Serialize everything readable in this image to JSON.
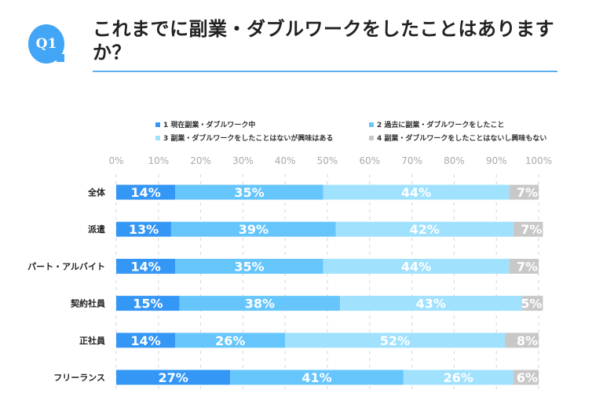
{
  "header": {
    "badge": "Q1",
    "title": "これまでに副業・ダブルワークをしたことはありますか？"
  },
  "colors": {
    "accent": "#42a5f5",
    "rule": "#5ab0f0"
  },
  "chart_data": {
    "type": "bar",
    "orientation": "horizontal",
    "stacked": true,
    "normalized": true,
    "title": "",
    "xlabel": "",
    "ylabel": "",
    "xlim": [
      0,
      100
    ],
    "x_ticks": [
      "0%",
      "10%",
      "20%",
      "30%",
      "40%",
      "50%",
      "60%",
      "70%",
      "80%",
      "90%",
      "100%"
    ],
    "grid": true,
    "legend_position": "top",
    "categories": [
      "全体",
      "派遣",
      "パート・アルバイト",
      "契約社員",
      "正社員",
      "フリーランス"
    ],
    "series": [
      {
        "name": "1 現在副業・ダブルワーク中",
        "color": "#3597f5",
        "values": [
          14,
          13,
          14,
          15,
          14,
          27
        ]
      },
      {
        "name": "2 過去に副業・ダブルワークをしたこと",
        "color": "#66c6fc",
        "values": [
          35,
          39,
          35,
          38,
          26,
          41
        ]
      },
      {
        "name": "3 副業・ダブルワークをしたことはないが興味はある",
        "color": "#a0e2fd",
        "values": [
          44,
          42,
          44,
          43,
          52,
          26
        ]
      },
      {
        "name": "4 副業・ダブルワークをしたことはないし興味もない",
        "color": "#c8c8c8",
        "values": [
          7,
          7,
          7,
          5,
          8,
          6
        ]
      }
    ]
  }
}
